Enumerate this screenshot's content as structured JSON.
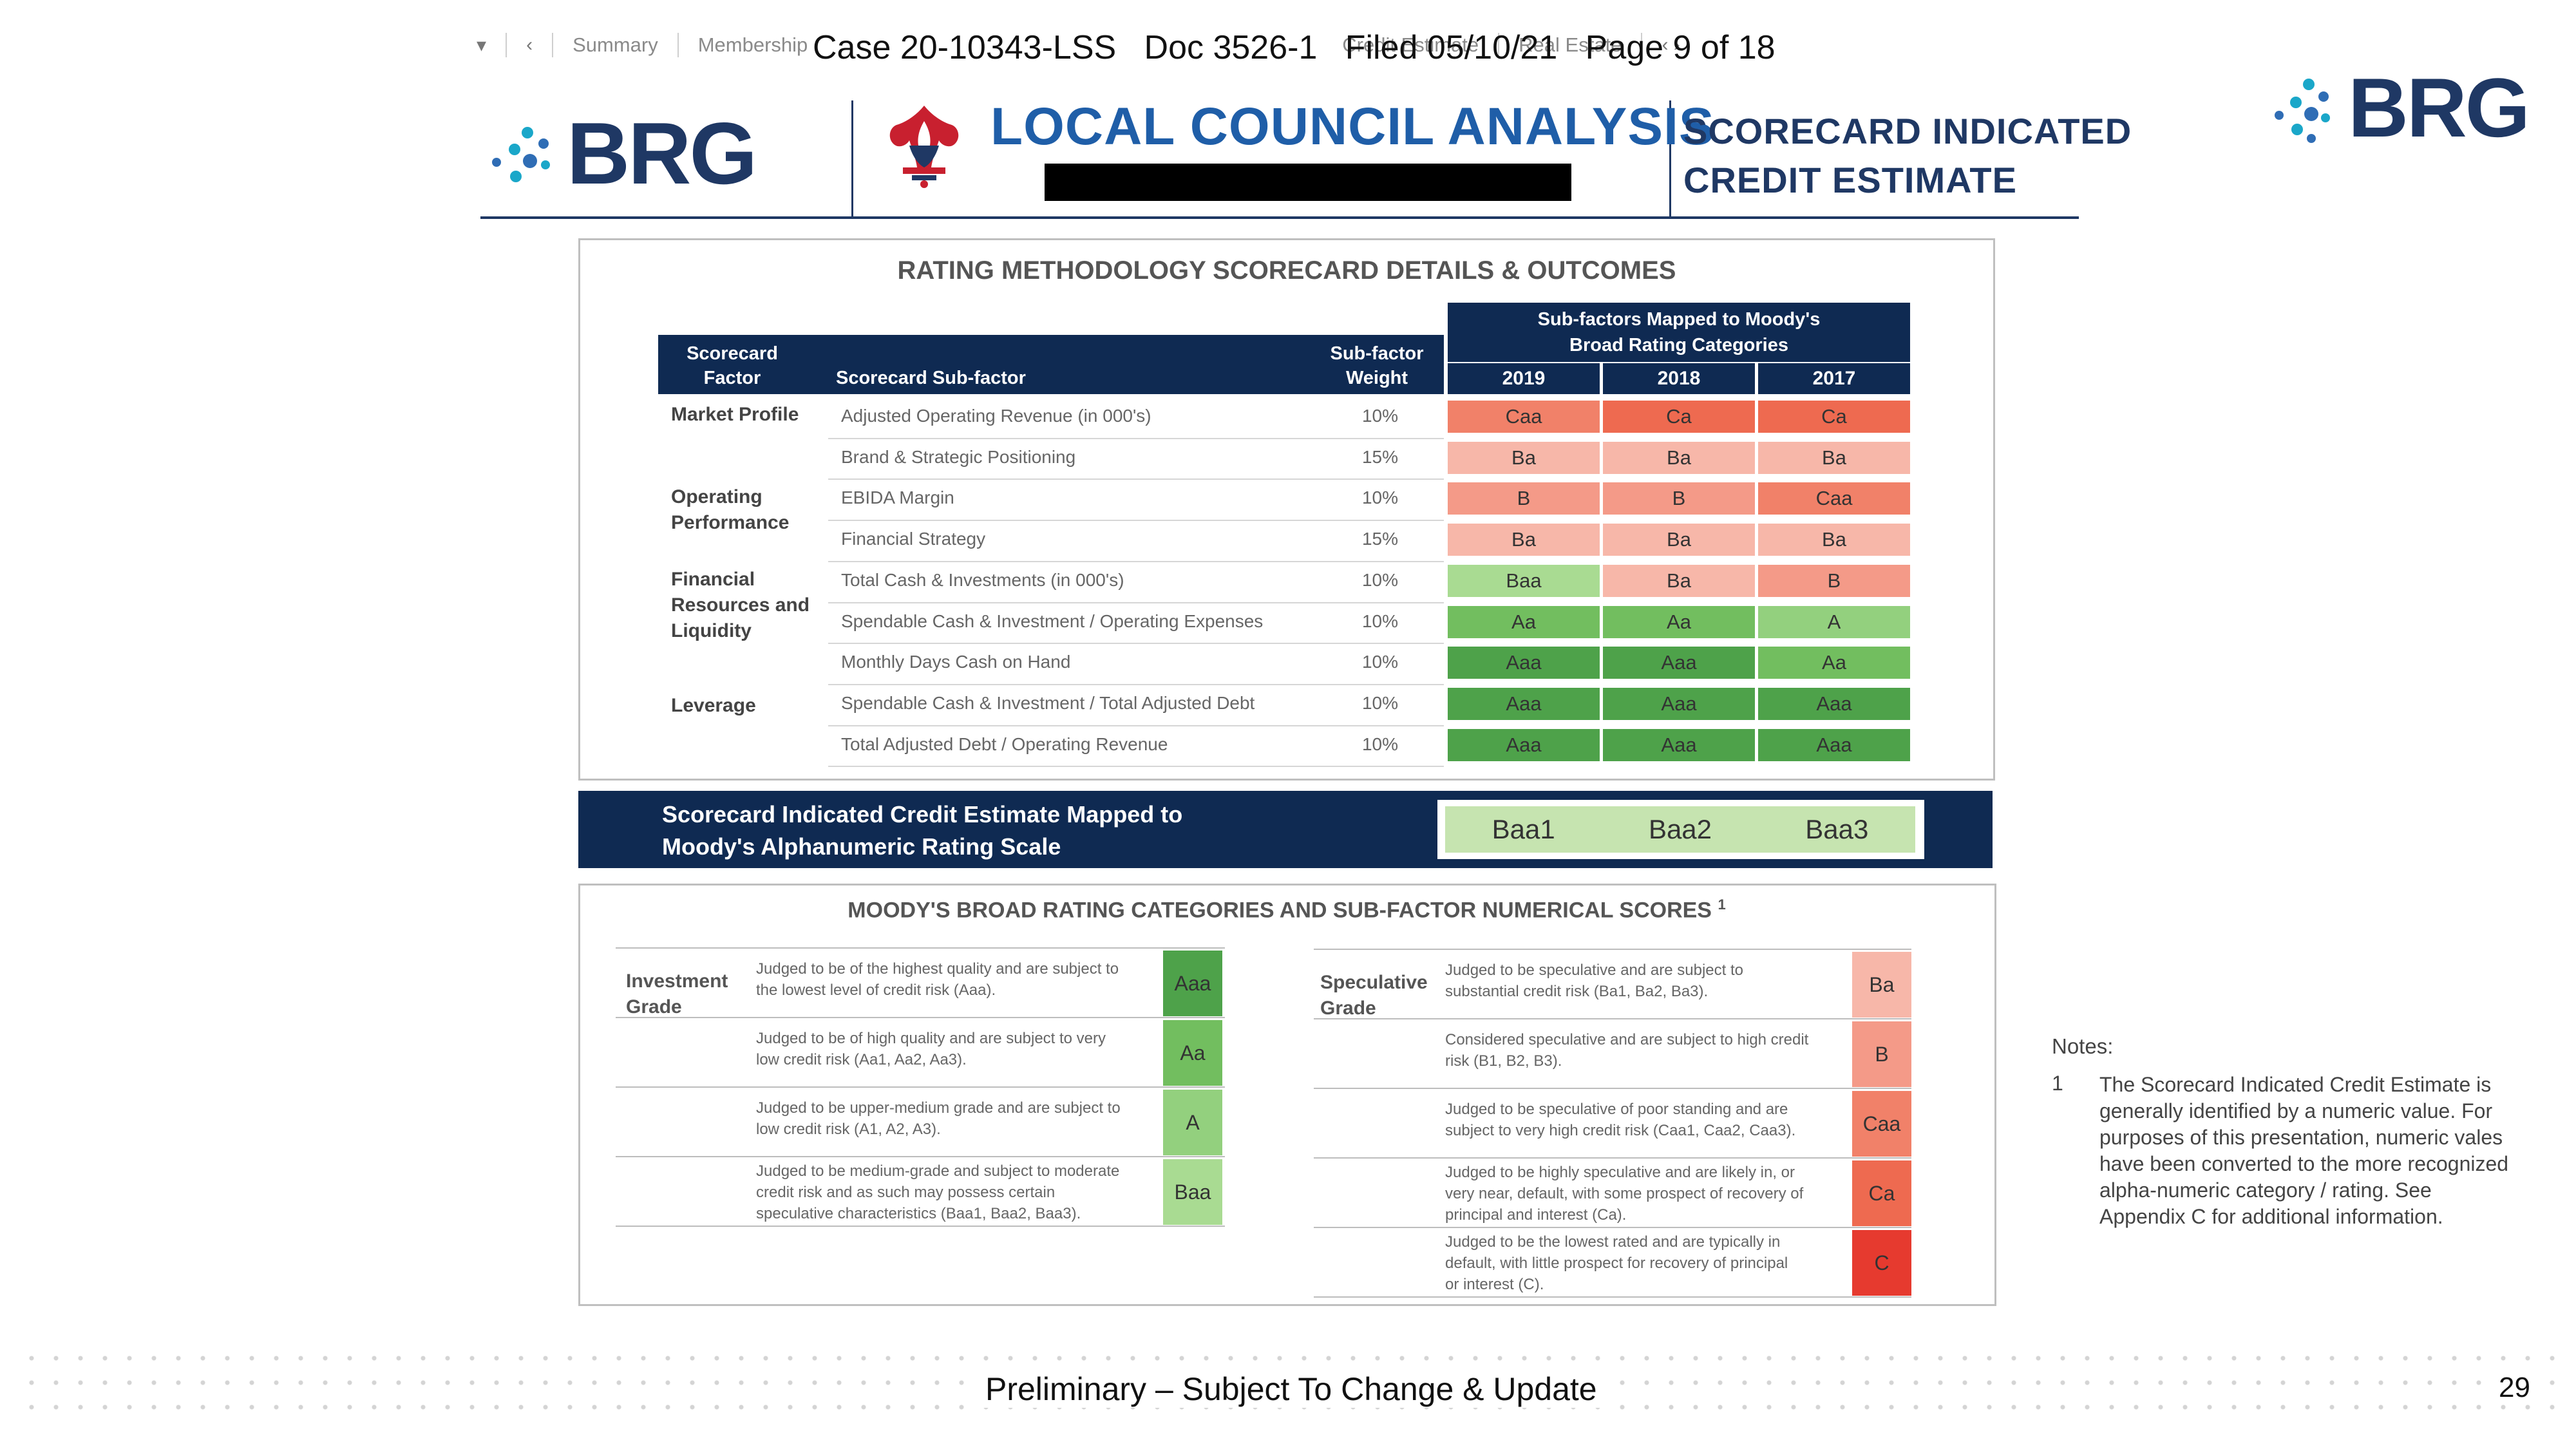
{
  "tabs": {
    "items": [
      "Summary",
      "Membership",
      "Credit Estimate",
      "Real Estate"
    ]
  },
  "case_header": {
    "case": "Case 20-10343-LSS",
    "doc": "Doc 3526-1",
    "filed": "Filed 05/10/21",
    "page": "Page 9 of 18"
  },
  "header": {
    "logo_text": "BRG",
    "title": "LOCAL COUNCIL ANALYSIS",
    "right_title_line1": "SCORECARD INDICATED",
    "right_title_line2": "CREDIT ESTIMATE"
  },
  "scorecard": {
    "title": "RATING METHODOLOGY SCORECARD DETAILS & OUTCOMES",
    "col_factor_line1": "Scorecard",
    "col_factor_line2": "Factor",
    "col_subfactor": "Scorecard Sub-factor",
    "col_weight_line1": "Sub-factor",
    "col_weight_line2": "Weight",
    "mapped_line1": "Sub-factors Mapped to Moody's",
    "mapped_line2": "Broad Rating Categories",
    "years": [
      "2019",
      "2018",
      "2017"
    ],
    "factors": [
      {
        "lines": [
          "Market Profile"
        ]
      },
      {
        "lines": [
          "Operating",
          "Performance"
        ]
      },
      {
        "lines": [
          "Financial",
          "Resources and",
          "Liquidity"
        ]
      },
      {
        "lines": [
          "Leverage"
        ]
      }
    ],
    "rows": [
      {
        "subfactor": "Adjusted Operating Revenue (in 000's)",
        "weight": "10%",
        "ratings": [
          "Caa",
          "Ca",
          "Ca"
        ]
      },
      {
        "subfactor": "Brand & Strategic Positioning",
        "weight": "15%",
        "ratings": [
          "Ba",
          "Ba",
          "Ba"
        ]
      },
      {
        "subfactor": "EBIDA Margin",
        "weight": "10%",
        "ratings": [
          "B",
          "B",
          "Caa"
        ]
      },
      {
        "subfactor": "Financial Strategy",
        "weight": "15%",
        "ratings": [
          "Ba",
          "Ba",
          "Ba"
        ]
      },
      {
        "subfactor": "Total Cash & Investments (in 000's)",
        "weight": "10%",
        "ratings": [
          "Baa",
          "Ba",
          "B"
        ]
      },
      {
        "subfactor": "Spendable Cash & Investment / Operating Expenses",
        "weight": "10%",
        "ratings": [
          "Aa",
          "Aa",
          "A"
        ]
      },
      {
        "subfactor": "Monthly Days Cash on Hand",
        "weight": "10%",
        "ratings": [
          "Aaa",
          "Aaa",
          "Aa"
        ]
      },
      {
        "subfactor": "Spendable Cash & Investment / Total Adjusted Debt",
        "weight": "10%",
        "ratings": [
          "Aaa",
          "Aaa",
          "Aaa"
        ]
      },
      {
        "subfactor": "Total Adjusted Debt / Operating Revenue",
        "weight": "10%",
        "ratings": [
          "Aaa",
          "Aaa",
          "Aaa"
        ]
      }
    ]
  },
  "credit_estimate": {
    "label_line1": "Scorecard Indicated Credit Estimate Mapped to",
    "label_line2": "Moody's Alphanumeric Rating Scale",
    "values": [
      "Baa1",
      "Baa2",
      "Baa3"
    ]
  },
  "categories": {
    "title": "MOODY'S BROAD RATING CATEGORIES AND SUB-FACTOR NUMERICAL SCORES",
    "footnote_mark": "1",
    "investment_label_line1": "Investment",
    "investment_label_line2": "Grade",
    "speculative_label_line1": "Speculative",
    "speculative_label_line2": "Grade",
    "investment": [
      {
        "lines": [
          "Judged to be of the highest quality and are subject to",
          "the lowest level of credit risk (Aaa)."
        ],
        "rating": "Aaa"
      },
      {
        "lines": [
          "Judged to be of high quality and are subject to very",
          "low credit risk (Aa1, Aa2, Aa3)."
        ],
        "rating": "Aa"
      },
      {
        "lines": [
          "Judged to be upper-medium grade and are subject to",
          "low credit risk (A1, A2, A3)."
        ],
        "rating": "A"
      },
      {
        "lines": [
          "Judged to be medium-grade and subject to moderate",
          "credit risk and as such may possess certain",
          "speculative characteristics (Baa1, Baa2, Baa3)."
        ],
        "rating": "Baa"
      }
    ],
    "speculative": [
      {
        "lines": [
          "Judged to be speculative and are subject to",
          "substantial credit risk (Ba1, Ba2, Ba3)."
        ],
        "rating": "Ba"
      },
      {
        "lines": [
          "Considered speculative and are subject to high credit",
          "risk (B1, B2, B3)."
        ],
        "rating": "B"
      },
      {
        "lines": [
          "Judged to be speculative of poor standing and are",
          "subject to very high credit risk (Caa1, Caa2, Caa3)."
        ],
        "rating": "Caa"
      },
      {
        "lines": [
          "Judged to be highly speculative and are likely in, or",
          "very near, default, with some prospect of recovery of",
          "principal and interest (Ca)."
        ],
        "rating": "Ca"
      },
      {
        "lines": [
          "Judged to be the lowest rated and are typically in",
          "default, with little prospect for recovery of principal",
          "or interest (C)."
        ],
        "rating": "C"
      }
    ]
  },
  "rating_colors": {
    "Aaa": "#4ea24a",
    "Aa": "#72be5f",
    "A": "#93d07e",
    "Baa": "#a9db92",
    "Ba": "#f7b7a9",
    "B": "#f49a88",
    "Caa": "#f18169",
    "Ca": "#ee6a50",
    "C": "#e63a2f"
  },
  "notes": {
    "heading": "Notes:",
    "number": "1",
    "text": "The Scorecard Indicated Credit Estimate is generally identified by a numeric value. For purposes of this presentation, numeric vales have been converted to the more recognized alpha-numeric category / rating. See Appendix C for additional information."
  },
  "footer": {
    "text": "Preliminary – Subject To Change & Update",
    "page_number": "29"
  }
}
